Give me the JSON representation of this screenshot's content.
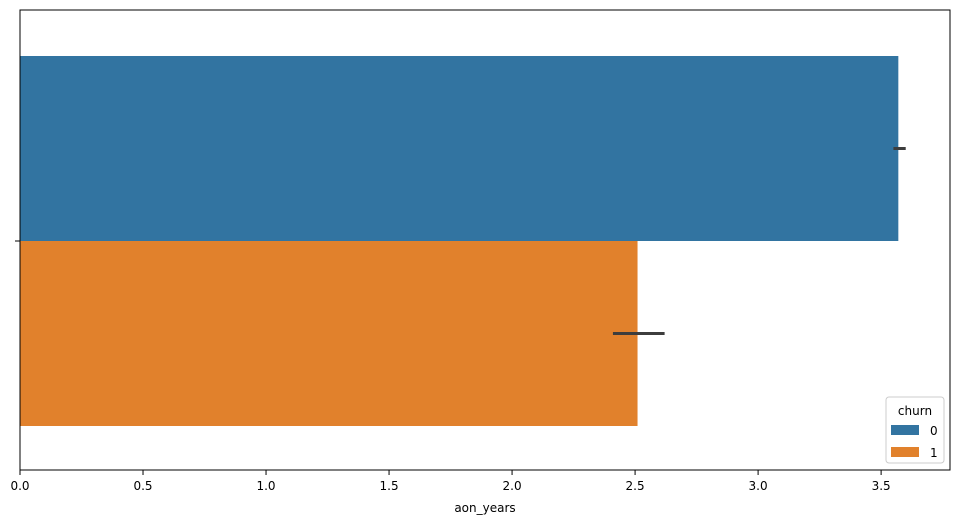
{
  "chart_data": {
    "type": "bar",
    "orientation": "horizontal",
    "categories": [
      ""
    ],
    "series": [
      {
        "name": "0",
        "values": [
          3.57
        ],
        "ci": [
          [
            3.55,
            3.6
          ]
        ],
        "color": "#3274a1"
      },
      {
        "name": "1",
        "values": [
          2.51
        ],
        "ci": [
          [
            2.41,
            2.62
          ]
        ],
        "color": "#e1812c"
      }
    ],
    "xlabel": "aon_years",
    "ylabel": "",
    "xlim": [
      0,
      3.78
    ],
    "xticks": [
      0.0,
      0.5,
      1.0,
      1.5,
      2.0,
      2.5,
      3.0,
      3.5
    ],
    "xtick_labels": [
      "0.0",
      "0.5",
      "1.0",
      "1.5",
      "2.0",
      "2.5",
      "3.0",
      "3.5"
    ],
    "grid": false,
    "legend": {
      "title": "churn",
      "placement": "lower-right",
      "entries": [
        "0",
        "1"
      ]
    }
  }
}
